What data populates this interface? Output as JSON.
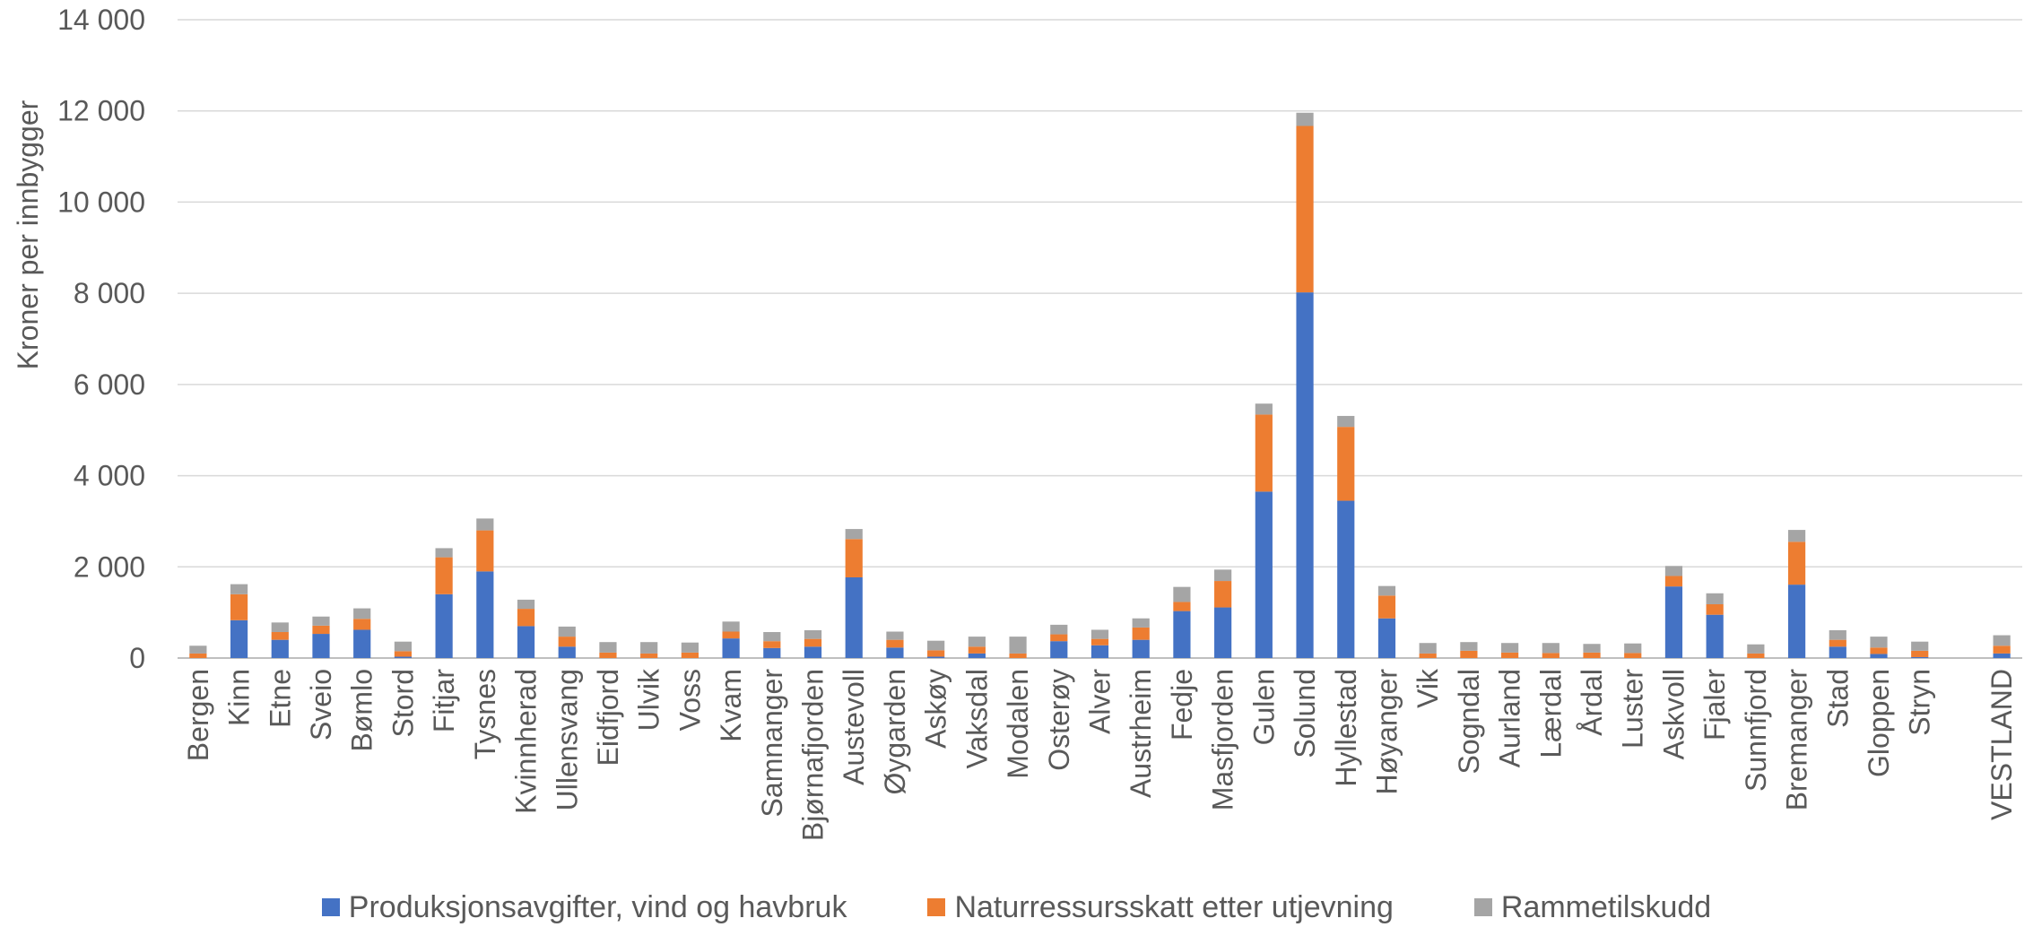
{
  "chart_data": {
    "type": "bar",
    "stacked": true,
    "ylabel": "Kroner per innbygger",
    "ylim": [
      0,
      14000
    ],
    "yticks": [
      0,
      2000,
      4000,
      6000,
      8000,
      10000,
      12000,
      14000
    ],
    "ytick_labels": [
      "0",
      "2 000",
      "4 000",
      "6 000",
      "8 000",
      "10 000",
      "12 000",
      "14 000"
    ],
    "grid": true,
    "legend_position": "bottom",
    "categories": [
      "Bergen",
      "Kinn",
      "Etne",
      "Sveio",
      "Bømlo",
      "Stord",
      "Fitjar",
      "Tysnes",
      "Kvinnherad",
      "Ullensvang",
      "Eidfjord",
      "Ulvik",
      "Voss",
      "Kvam",
      "Samnanger",
      "Bjørnafjorden",
      "Austevoll",
      "Øygarden",
      "Askøy",
      "Vaksdal",
      "Modalen",
      "Osterøy",
      "Alver",
      "Austrheim",
      "Fedje",
      "Masfjorden",
      "Gulen",
      "Solund",
      "Hyllestad",
      "Høyanger",
      "Vik",
      "Sogndal",
      "Aurland",
      "Lærdal",
      "Årdal",
      "Luster",
      "Askvoll",
      "Fjaler",
      "Sunnfjord",
      "Bremanger",
      "Stad",
      "Gloppen",
      "Stryn",
      "",
      "VESTLAND"
    ],
    "series": [
      {
        "name": "Produksjonsavgifter, vind og havbruk",
        "color": "#4472C4",
        "values": [
          0,
          830,
          400,
          530,
          620,
          30,
          1400,
          1900,
          700,
          250,
          0,
          0,
          0,
          430,
          220,
          250,
          1770,
          230,
          30,
          100,
          0,
          370,
          280,
          400,
          1030,
          1110,
          3650,
          8020,
          3450,
          870,
          0,
          0,
          0,
          0,
          0,
          0,
          1570,
          950,
          0,
          1610,
          250,
          90,
          20,
          0,
          100
        ]
      },
      {
        "name": "Naturressursskatt etter utjevning",
        "color": "#ED7D31",
        "values": [
          100,
          570,
          170,
          180,
          240,
          120,
          810,
          900,
          380,
          220,
          120,
          100,
          120,
          150,
          150,
          170,
          840,
          170,
          140,
          150,
          100,
          150,
          140,
          270,
          200,
          580,
          1690,
          3650,
          1620,
          500,
          100,
          160,
          120,
          110,
          120,
          110,
          230,
          230,
          100,
          940,
          150,
          140,
          140,
          0,
          170
        ]
      },
      {
        "name": "Rammetilskudd",
        "color": "#A5A5A5",
        "values": [
          170,
          220,
          210,
          200,
          230,
          210,
          200,
          260,
          200,
          220,
          230,
          250,
          220,
          220,
          200,
          190,
          220,
          180,
          210,
          220,
          370,
          210,
          200,
          200,
          330,
          250,
          240,
          290,
          240,
          210,
          230,
          190,
          210,
          220,
          190,
          210,
          220,
          240,
          200,
          260,
          210,
          240,
          200,
          0,
          230
        ]
      }
    ]
  }
}
